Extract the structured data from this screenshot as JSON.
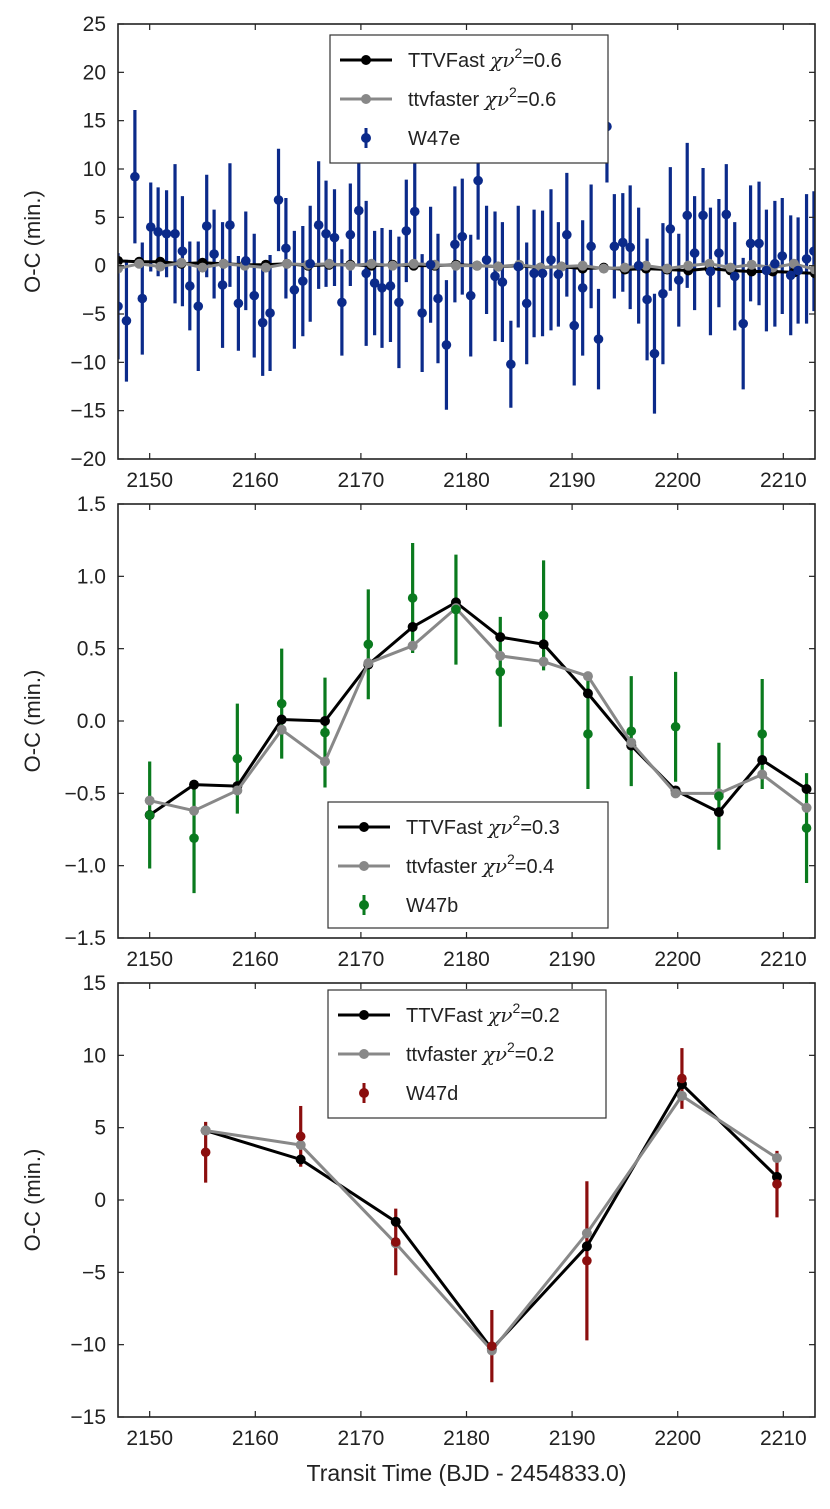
{
  "colors": {
    "ttvfast": "#000000",
    "ttvfaster": "#888888",
    "W47e": "#0b2a8a",
    "W47b": "#0a7a1e",
    "W47d": "#8b0e0e"
  },
  "chart_data": [
    {
      "type": "scatter",
      "ylabel": "O-C (min.)",
      "xlabel": "",
      "xlim": [
        2147,
        2213
      ],
      "ylim": [
        -20,
        25
      ],
      "xticks": [
        2150,
        2160,
        2170,
        2180,
        2190,
        2200,
        2210
      ],
      "yticks": [
        -20,
        -15,
        -10,
        -5,
        0,
        5,
        10,
        15,
        20,
        25
      ],
      "xtick_labels": [
        "2150",
        "2160",
        "2170",
        "2180",
        "2190",
        "2200",
        "2210"
      ],
      "ytick_labels": [
        "−20",
        "−15",
        "−10",
        "−5",
        "0",
        "5",
        "10",
        "15",
        "20",
        "25"
      ],
      "grid": false,
      "legend_position": "top-center",
      "legend": [
        {
          "label_main": "TTVFast ",
          "label_chi": "χν",
          "label_sup": "2",
          "label_val": "=0.6",
          "style": "line",
          "color_key": "ttvfast"
        },
        {
          "label_main": "ttvfaster ",
          "label_chi": "χν",
          "label_sup": "2",
          "label_val": "=0.6",
          "style": "line",
          "color_key": "ttvfaster"
        },
        {
          "label_main": "W47e",
          "label_chi": "",
          "label_sup": "",
          "label_val": "",
          "style": "errorbar",
          "color_key": "W47e"
        }
      ],
      "model_x": [
        2147.0,
        2149.0,
        2151.0,
        2153.0,
        2155.0,
        2157.0,
        2159.0,
        2161.0,
        2163.0,
        2165.0,
        2167.0,
        2169.0,
        2171.0,
        2173.0,
        2175.0,
        2177.0,
        2179.0,
        2181.0,
        2183.0,
        2185.0,
        2187.0,
        2189.0,
        2191.0,
        2193.0,
        2195.0,
        2197.0,
        2199.0,
        2201.0,
        2203.0,
        2205.0,
        2207.0,
        2209.0,
        2211.0,
        2213.0
      ],
      "model_ttvfast": [
        0.5,
        0.4,
        0.4,
        0.2,
        0.3,
        0.2,
        0.1,
        0.1,
        0.2,
        0.0,
        0.1,
        0.1,
        0.0,
        0.1,
        0.0,
        0.0,
        0.1,
        0.0,
        -0.1,
        0.0,
        -0.2,
        -0.1,
        -0.3,
        -0.2,
        -0.4,
        -0.3,
        -0.4,
        -0.5,
        -0.3,
        -0.5,
        -0.6,
        -0.6,
        -0.7,
        -0.8
      ],
      "model_ttvfaster": [
        -0.3,
        0.2,
        -0.1,
        0.3,
        -0.2,
        0.2,
        0.0,
        -0.2,
        0.2,
        0.1,
        0.2,
        0.0,
        0.2,
        0.0,
        0.2,
        0.1,
        0.0,
        0.0,
        -0.1,
        0.1,
        -0.2,
        -0.1,
        0.0,
        -0.3,
        -0.2,
        0.0,
        -0.3,
        0.0,
        0.2,
        -0.2,
        0.1,
        -0.2,
        0.2,
        -0.4
      ],
      "series": [
        {
          "name": "W47e",
          "color_key": "W47e",
          "x": [
            2147.0,
            2147.8,
            2148.6,
            2149.3,
            2150.1,
            2150.8,
            2151.6,
            2152.4,
            2153.1,
            2153.8,
            2154.6,
            2155.4,
            2156.1,
            2156.9,
            2157.6,
            2158.4,
            2159.1,
            2159.9,
            2160.7,
            2161.4,
            2162.2,
            2162.9,
            2163.7,
            2164.5,
            2165.2,
            2166.0,
            2166.7,
            2167.5,
            2168.2,
            2169.0,
            2169.8,
            2170.5,
            2171.3,
            2172.0,
            2172.8,
            2173.6,
            2174.3,
            2175.1,
            2175.8,
            2176.6,
            2177.3,
            2178.1,
            2178.9,
            2179.6,
            2180.4,
            2181.1,
            2181.9,
            2182.7,
            2183.4,
            2184.2,
            2184.9,
            2185.7,
            2186.4,
            2187.2,
            2188.0,
            2188.7,
            2189.5,
            2190.2,
            2191.0,
            2191.8,
            2192.5,
            2193.3,
            2194.0,
            2194.8,
            2195.5,
            2196.3,
            2197.1,
            2197.8,
            2198.6,
            2199.3,
            2200.1,
            2200.9,
            2201.6,
            2202.4,
            2203.1,
            2203.9,
            2204.6,
            2205.4,
            2206.2,
            2206.9,
            2207.7,
            2208.4,
            2209.2,
            2209.9,
            2210.7,
            2211.4,
            2212.2,
            2212.9
          ],
          "y": [
            -4.2,
            -5.7,
            9.2,
            -3.4,
            4.0,
            3.5,
            3.3,
            3.3,
            1.5,
            -2.1,
            -4.2,
            4.1,
            1.2,
            -2.0,
            4.2,
            -3.9,
            0.5,
            -3.1,
            -5.9,
            -4.9,
            6.8,
            1.8,
            -2.5,
            -1.6,
            0.2,
            4.2,
            3.3,
            2.9,
            -3.8,
            3.2,
            5.7,
            -0.8,
            -1.8,
            -2.3,
            -2.1,
            -3.8,
            3.6,
            5.6,
            -4.9,
            0.1,
            -3.4,
            -8.2,
            2.2,
            3.0,
            -3.1,
            8.8,
            0.6,
            -1.1,
            -1.7,
            -10.2,
            -0.1,
            -3.9,
            -0.8,
            -0.8,
            0.6,
            -0.9,
            3.2,
            -6.2,
            -2.3,
            2.0,
            -7.6,
            14.4,
            2.0,
            2.4,
            1.9,
            0.0,
            -3.5,
            -9.1,
            -2.9,
            3.8,
            -1.5,
            5.2,
            1.3,
            5.2,
            -0.6,
            1.3,
            5.3,
            -1.1,
            -6.0,
            2.3,
            2.3,
            -0.5,
            0.2,
            1.0,
            -1.0,
            -0.5,
            0.7,
            1.5
          ],
          "err": [
            5.5,
            6.3,
            6.9,
            5.8,
            4.6,
            4.6,
            4.5,
            7.2,
            5.7,
            4.6,
            6.7,
            5.3,
            4.6,
            6.5,
            6.4,
            4.9,
            5.1,
            6.4,
            5.5,
            6.0,
            5.3,
            5.2,
            6.1,
            5.7,
            6.0,
            6.6,
            5.5,
            5.0,
            5.5,
            5.3,
            5.5,
            7.5,
            5.4,
            6.2,
            5.8,
            6.8,
            5.3,
            5.2,
            6.1,
            6.0,
            6.7,
            6.7,
            6.0,
            6.0,
            6.3,
            6.1,
            5.6,
            6.7,
            6.2,
            4.5,
            6.3,
            6.3,
            6.6,
            6.5,
            7.3,
            5.4,
            6.4,
            6.2,
            7.0,
            6.4,
            5.2,
            5.8,
            5.4,
            5.1,
            6.4,
            6.0,
            6.3,
            6.2,
            7.3,
            6.4,
            4.8,
            7.5,
            5.9,
            4.9,
            6.6,
            5.6,
            5.2,
            5.6,
            6.8,
            6.0,
            6.4,
            6.3,
            6.5,
            6.0,
            6.2,
            5.5,
            6.7,
            6.2
          ]
        }
      ]
    },
    {
      "type": "line",
      "ylabel": "O-C (min.)",
      "xlabel": "",
      "xlim": [
        2147,
        2213
      ],
      "ylim": [
        -1.5,
        1.5
      ],
      "xticks": [
        2150,
        2160,
        2170,
        2180,
        2190,
        2200,
        2210
      ],
      "yticks": [
        -1.5,
        -1.0,
        -0.5,
        0.0,
        0.5,
        1.0,
        1.5
      ],
      "xtick_labels": [
        "2150",
        "2160",
        "2170",
        "2180",
        "2190",
        "2200",
        "2210"
      ],
      "ytick_labels": [
        "−1.5",
        "−1.0",
        "−0.5",
        "0.0",
        "0.5",
        "1.0",
        "1.5"
      ],
      "grid": false,
      "legend_position": "lower-center",
      "legend": [
        {
          "label_main": "TTVFast ",
          "label_chi": "χν",
          "label_sup": "2",
          "label_val": "=0.3",
          "style": "line",
          "color_key": "ttvfast"
        },
        {
          "label_main": "ttvfaster ",
          "label_chi": "χν",
          "label_sup": "2",
          "label_val": "=0.4",
          "style": "line",
          "color_key": "ttvfaster"
        },
        {
          "label_main": "W47b",
          "label_chi": "",
          "label_sup": "",
          "label_val": "",
          "style": "errorbar",
          "color_key": "W47b"
        }
      ],
      "x": [
        2150.0,
        2154.2,
        2158.3,
        2162.5,
        2166.6,
        2170.7,
        2174.9,
        2179.0,
        2183.2,
        2187.3,
        2191.5,
        2195.6,
        2199.8,
        2203.9,
        2208.0,
        2212.2
      ],
      "model_ttvfast": [
        -0.65,
        -0.44,
        -0.45,
        0.01,
        0.0,
        0.39,
        0.65,
        0.82,
        0.58,
        0.53,
        0.19,
        -0.17,
        -0.48,
        -0.63,
        -0.27,
        -0.47
      ],
      "model_ttvfaster": [
        -0.55,
        -0.62,
        -0.48,
        -0.06,
        -0.28,
        0.4,
        0.52,
        0.78,
        0.45,
        0.41,
        0.31,
        -0.15,
        -0.5,
        -0.5,
        -0.37,
        -0.6
      ],
      "series": [
        {
          "name": "W47b",
          "color_key": "W47b",
          "x": [
            2150.0,
            2154.2,
            2158.3,
            2162.5,
            2166.6,
            2170.7,
            2174.9,
            2179.0,
            2183.2,
            2187.3,
            2191.5,
            2195.6,
            2199.8,
            2203.9,
            2208.0,
            2212.2
          ],
          "y": [
            -0.65,
            -0.81,
            -0.26,
            0.12,
            -0.08,
            0.53,
            0.85,
            0.77,
            0.34,
            0.73,
            -0.09,
            -0.07,
            -0.04,
            -0.52,
            -0.09,
            -0.74
          ],
          "err": [
            0.37,
            0.38,
            0.38,
            0.38,
            0.38,
            0.38,
            0.38,
            0.38,
            0.38,
            0.38,
            0.38,
            0.38,
            0.38,
            0.37,
            0.38,
            0.38
          ]
        }
      ]
    },
    {
      "type": "line",
      "ylabel": "O-C (min.)",
      "xlabel": "Transit Time (BJD - 2454833.0)",
      "xlim": [
        2147,
        2213
      ],
      "ylim": [
        -15,
        15
      ],
      "xticks": [
        2150,
        2160,
        2170,
        2180,
        2190,
        2200,
        2210
      ],
      "yticks": [
        -15,
        -10,
        -5,
        0,
        5,
        10,
        15
      ],
      "xtick_labels": [
        "2150",
        "2160",
        "2170",
        "2180",
        "2190",
        "2200",
        "2210"
      ],
      "ytick_labels": [
        "−15",
        "−10",
        "−5",
        "0",
        "5",
        "10",
        "15"
      ],
      "grid": false,
      "legend_position": "top-center",
      "legend": [
        {
          "label_main": "TTVFast ",
          "label_chi": "χν",
          "label_sup": "2",
          "label_val": "=0.2",
          "style": "line",
          "color_key": "ttvfast"
        },
        {
          "label_main": "ttvfaster ",
          "label_chi": "χν",
          "label_sup": "2",
          "label_val": "=0.2",
          "style": "line",
          "color_key": "ttvfaster"
        },
        {
          "label_main": "W47d",
          "label_chi": "",
          "label_sup": "",
          "label_val": "",
          "style": "errorbar",
          "color_key": "W47d"
        }
      ],
      "x": [
        2155.3,
        2164.3,
        2173.3,
        2182.4,
        2191.4,
        2200.4,
        2209.4
      ],
      "model_ttvfast": [
        4.8,
        2.8,
        -1.5,
        -10.3,
        -3.2,
        8.0,
        1.6
      ],
      "model_ttvfaster": [
        4.8,
        3.8,
        -3.0,
        -10.4,
        -2.3,
        7.2,
        2.9
      ],
      "series": [
        {
          "name": "W47d",
          "color_key": "W47d",
          "x": [
            2155.3,
            2164.3,
            2173.3,
            2182.4,
            2191.4,
            2200.4,
            2209.4
          ],
          "y": [
            3.3,
            4.4,
            -2.9,
            -10.1,
            -4.2,
            8.4,
            1.1
          ],
          "err": [
            2.1,
            2.1,
            2.3,
            2.5,
            5.5,
            2.1,
            2.3
          ]
        }
      ]
    }
  ]
}
